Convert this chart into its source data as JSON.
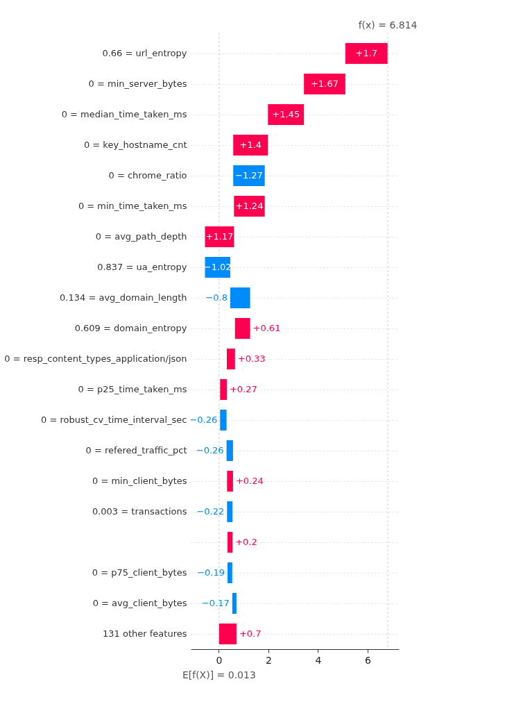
{
  "chart_data": {
    "type": "bar",
    "orientation": "horizontal",
    "categories": [
      "0.66 = url_entropy",
      "0 = min_server_bytes",
      "0 = median_time_taken_ms",
      "0 = key_hostname_cnt",
      "0 = chrome_ratio",
      "0 = min_time_taken_ms",
      "0 = avg_path_depth",
      "0.837 = ua_entropy",
      "0.134 = avg_domain_length",
      "0.609 = domain_entropy",
      "0 = resp_content_types_application/json",
      "0 = p25_time_taken_ms",
      "0 = robust_cv_time_interval_sec",
      "0 = refered_traffic_pct",
      "0 = min_client_bytes",
      "0.003 = transactions",
      null,
      "0 = p75_client_bytes",
      "0 = avg_client_bytes",
      "131 other features"
    ],
    "values": [
      1.7,
      1.67,
      1.45,
      1.4,
      -1.27,
      1.24,
      1.17,
      -1.02,
      -0.8,
      0.61,
      0.33,
      0.27,
      -0.26,
      -0.26,
      0.24,
      -0.22,
      0.2,
      -0.19,
      -0.17,
      0.7
    ],
    "base": [
      5.103,
      3.433,
      1.983,
      0.583,
      1.853,
      0.613,
      -0.557,
      0.463,
      1.263,
      0.653,
      0.323,
      0.053,
      0.313,
      0.573,
      0.333,
      0.553,
      0.353,
      0.543,
      0.713,
      0.013
    ],
    "colors": [
      "#ff0051",
      "#ff0051",
      "#ff0051",
      "#ff0051",
      "#008bfb",
      "#ff0051",
      "#ff0051",
      "#008bfb",
      "#008bfb",
      "#ff0051",
      "#ff0051",
      "#ff0051",
      "#008bfb",
      "#008bfb",
      "#ff0051",
      "#008bfb",
      "#ff0051",
      "#008bfb",
      "#008bfb",
      "#ff0051"
    ],
    "value_labels": [
      "+1.7",
      "+1.67",
      "+1.45",
      "+1.4",
      "−1.27",
      "+1.24",
      "+1.17",
      "−1.02",
      "−0.8",
      "+0.61",
      "+0.33",
      "+0.27",
      "−0.26",
      "−0.26",
      "+0.24",
      "−0.22",
      "+0.2",
      "−0.19",
      "−0.17",
      "+0.7"
    ],
    "xlim": [
      -1.13,
      7.26
    ],
    "xticks": [
      0,
      2,
      4,
      6
    ],
    "grid": "y",
    "ref_lines": [
      {
        "axis": "x",
        "value": 0.013,
        "label": "E[f(X)] = 0.013",
        "color": "#cccccc",
        "line_style": "dashed"
      },
      {
        "axis": "x",
        "value": 6.814,
        "label": "f(x) = 6.814",
        "color": "#cccccc",
        "line_style": "dashed"
      }
    ]
  }
}
